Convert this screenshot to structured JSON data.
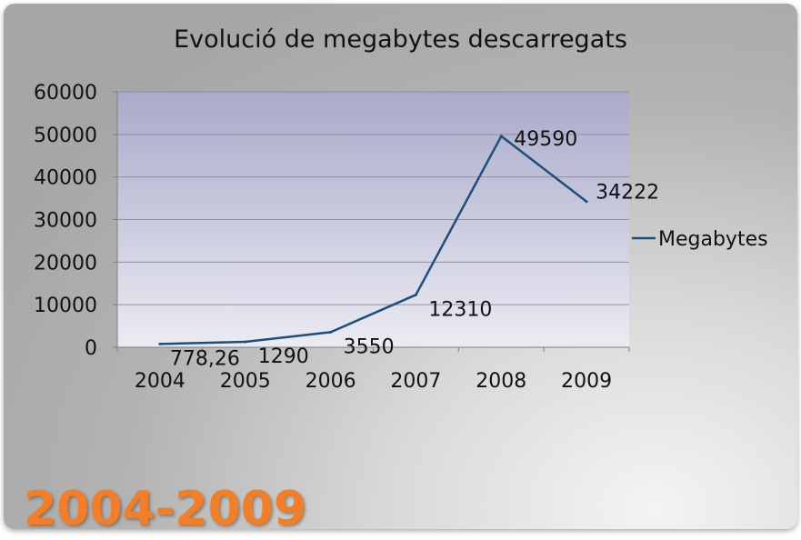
{
  "chart_data": {
    "type": "line",
    "title": "Evolució de megabytes descarregats",
    "categories": [
      "2004",
      "2005",
      "2006",
      "2007",
      "2008",
      "2009"
    ],
    "series": [
      {
        "name": "Megabytes",
        "values": [
          778.26,
          1290,
          3550,
          12310,
          49590,
          34222
        ],
        "labels": [
          "778,26",
          "1290",
          "3550",
          "12310",
          "49590",
          "34222"
        ],
        "color": "#1f4e79"
      }
    ],
    "ylim": [
      0,
      60000
    ],
    "yticks": [
      "0",
      "10000",
      "20000",
      "30000",
      "40000",
      "50000",
      "60000"
    ],
    "grid": true,
    "legend": "right",
    "plot_background": [
      "#a9aaca",
      "#ebebf3"
    ]
  },
  "slide": {
    "period": "2004-2009",
    "period_color": "#f07e2a"
  }
}
